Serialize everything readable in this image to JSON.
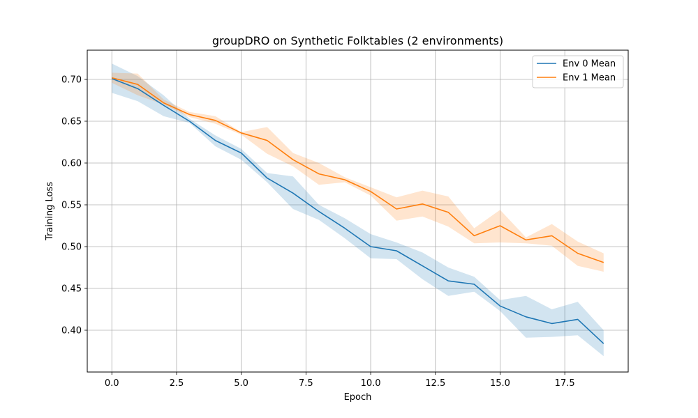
{
  "chart_data": {
    "type": "line",
    "title": "groupDRO on Synthetic Folktables (2 environments)",
    "xlabel": "Epoch",
    "ylabel": "Training Loss",
    "xlim": [
      -0.95,
      19.95
    ],
    "ylim": [
      0.35,
      0.735
    ],
    "xticks": [
      0,
      2.5,
      5,
      7.5,
      10,
      12.5,
      15,
      17.5
    ],
    "xtick_labels": [
      "0.0",
      "2.5",
      "5.0",
      "7.5",
      "10.0",
      "12.5",
      "15.0",
      "17.5"
    ],
    "yticks": [
      0.4,
      0.45,
      0.5,
      0.55,
      0.6,
      0.65,
      0.7
    ],
    "ytick_labels": [
      "0.40",
      "0.45",
      "0.50",
      "0.55",
      "0.60",
      "0.65",
      "0.70"
    ],
    "grid": true,
    "legend_position": "top-right",
    "x": [
      0,
      1,
      2,
      3,
      4,
      5,
      6,
      7,
      8,
      9,
      10,
      11,
      12,
      13,
      14,
      15,
      16,
      17,
      18,
      19
    ],
    "series": [
      {
        "name": "Env 0 Mean",
        "color": "#1f77b4",
        "values": [
          0.701,
          0.689,
          0.669,
          0.65,
          0.627,
          0.612,
          0.582,
          0.564,
          0.542,
          0.522,
          0.5,
          0.495,
          0.477,
          0.459,
          0.455,
          0.429,
          0.416,
          0.408,
          0.413,
          0.384
        ],
        "lower": [
          0.684,
          0.674,
          0.656,
          0.648,
          0.62,
          0.604,
          0.577,
          0.545,
          0.532,
          0.51,
          0.486,
          0.485,
          0.461,
          0.441,
          0.446,
          0.423,
          0.391,
          0.392,
          0.394,
          0.369
        ],
        "upper": [
          0.719,
          0.704,
          0.681,
          0.653,
          0.633,
          0.617,
          0.588,
          0.584,
          0.55,
          0.534,
          0.515,
          0.505,
          0.493,
          0.475,
          0.464,
          0.436,
          0.441,
          0.425,
          0.434,
          0.4
        ]
      },
      {
        "name": "Env 1 Mean",
        "color": "#ff7f0e",
        "values": [
          0.702,
          0.694,
          0.672,
          0.658,
          0.651,
          0.636,
          0.627,
          0.604,
          0.587,
          0.58,
          0.566,
          0.545,
          0.551,
          0.541,
          0.513,
          0.525,
          0.508,
          0.513,
          0.492,
          0.481
        ],
        "lower": [
          0.696,
          0.681,
          0.67,
          0.655,
          0.647,
          0.634,
          0.611,
          0.596,
          0.574,
          0.577,
          0.561,
          0.531,
          0.536,
          0.524,
          0.504,
          0.505,
          0.504,
          0.501,
          0.477,
          0.47
        ],
        "upper": [
          0.708,
          0.707,
          0.676,
          0.661,
          0.656,
          0.637,
          0.643,
          0.612,
          0.6,
          0.583,
          0.571,
          0.559,
          0.567,
          0.56,
          0.522,
          0.544,
          0.511,
          0.527,
          0.506,
          0.492
        ]
      }
    ]
  }
}
